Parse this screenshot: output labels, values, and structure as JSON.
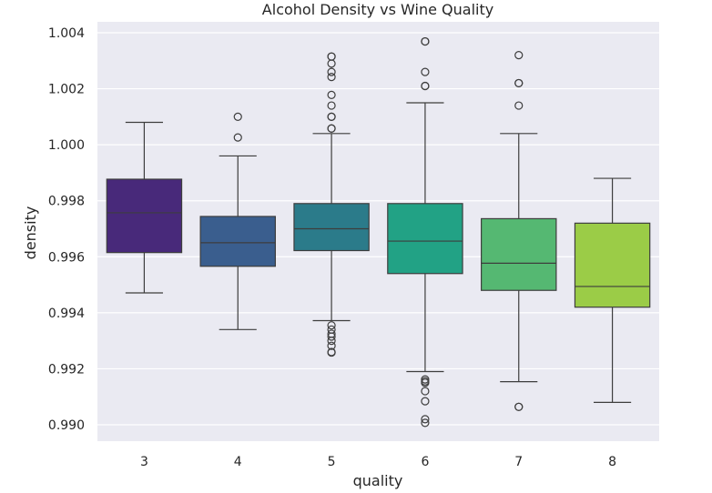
{
  "chart_data": {
    "type": "boxplot",
    "title": "Alcohol Density vs Wine Quality",
    "xlabel": "quality",
    "ylabel": "density",
    "ylim": [
      0.9894,
      1.0043
    ],
    "grid": true,
    "y_ticks": [
      "0.990",
      "0.992",
      "0.994",
      "0.996",
      "0.998",
      "1.000",
      "1.002",
      "1.004"
    ],
    "y_tick_values": [
      0.99,
      0.992,
      0.994,
      0.996,
      0.998,
      1.0,
      1.002,
      1.004
    ],
    "categories": [
      "3",
      "4",
      "5",
      "6",
      "7",
      "8"
    ],
    "colors": [
      "#48297a",
      "#3a5e8e",
      "#2b7b8a",
      "#22a285",
      "#55b872",
      "#9bcc47"
    ],
    "boxes": [
      {
        "category": "3",
        "whislo": 0.99471,
        "q1": 0.99615,
        "med": 0.99757,
        "q3": 0.99877,
        "whishi": 1.0008,
        "fliers": []
      },
      {
        "category": "4",
        "whislo": 0.9934,
        "q1": 0.99566,
        "med": 0.9965,
        "q3": 0.99744,
        "whishi": 0.9996,
        "fliers": [
          1.001,
          1.00026
        ]
      },
      {
        "category": "5",
        "whislo": 0.99372,
        "q1": 0.99622,
        "med": 0.997,
        "q3": 0.9979,
        "whishi": 1.0004,
        "fliers": [
          1.00315,
          1.00315,
          1.0029,
          1.0026,
          1.00242,
          1.00178,
          1.0014,
          1.001,
          1.001,
          1.00058,
          1.00058,
          0.99355,
          0.9934,
          0.99325,
          0.99315,
          0.993,
          0.99282,
          0.9926,
          0.99258
        ]
      },
      {
        "category": "6",
        "whislo": 0.9919,
        "q1": 0.9954,
        "med": 0.99656,
        "q3": 0.9979,
        "whishi": 1.0015,
        "fliers": [
          1.00369,
          1.00369,
          1.0026,
          1.0021,
          1.0021,
          0.99162,
          0.99155,
          0.9915,
          0.9912,
          0.99084,
          0.9902,
          0.99007
        ]
      },
      {
        "category": "7",
        "whislo": 0.99154,
        "q1": 0.9948,
        "med": 0.99577,
        "q3": 0.99736,
        "whishi": 1.0004,
        "fliers": [
          1.0032,
          1.0022,
          1.0022,
          1.0014,
          0.99064,
          0.99064
        ]
      },
      {
        "category": "8",
        "whislo": 0.9908,
        "q1": 0.9942,
        "med": 0.99494,
        "q3": 0.9972,
        "whishi": 0.9988,
        "fliers": []
      }
    ]
  }
}
